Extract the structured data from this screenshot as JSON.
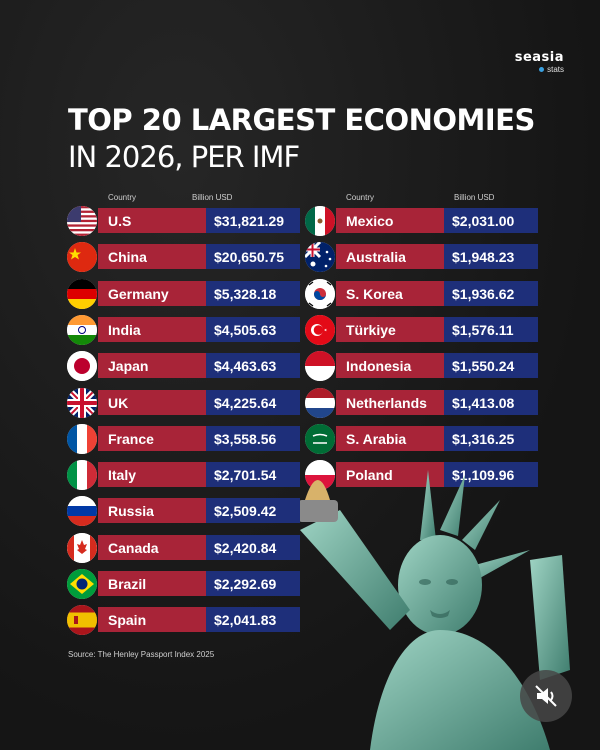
{
  "brand": {
    "name": "seasia",
    "sub": "stats"
  },
  "title": {
    "line1": "TOP 20 LARGEST ECONOMIES",
    "line2": "IN 2026, PER IMF"
  },
  "headers": {
    "country": "Country",
    "value": "Billion USD"
  },
  "source": "Source: The Henley Passport Index 2025",
  "colors": {
    "country_bg": "#a82438",
    "value_bg": "#1e2f7a",
    "background": "#1a1a1a"
  },
  "chart_data": {
    "type": "table",
    "title": "TOP 20 LARGEST ECONOMIES IN 2026, PER IMF",
    "columns": [
      "Country",
      "Billion USD"
    ],
    "rows": [
      {
        "country": "U.S",
        "value": "$31,821.29",
        "flag": "us-flag"
      },
      {
        "country": "China",
        "value": "$20,650.75",
        "flag": "china-flag"
      },
      {
        "country": "Germany",
        "value": "$5,328.18",
        "flag": "germany-flag"
      },
      {
        "country": "India",
        "value": "$4,505.63",
        "flag": "india-flag"
      },
      {
        "country": "Japan",
        "value": "$4,463.63",
        "flag": "japan-flag"
      },
      {
        "country": "UK",
        "value": "$4,225.64",
        "flag": "uk-flag"
      },
      {
        "country": "France",
        "value": "$3,558.56",
        "flag": "france-flag"
      },
      {
        "country": "Italy",
        "value": "$2,701.54",
        "flag": "italy-flag"
      },
      {
        "country": "Russia",
        "value": "$2,509.42",
        "flag": "russia-flag"
      },
      {
        "country": "Canada",
        "value": "$2,420.84",
        "flag": "canada-flag"
      },
      {
        "country": "Brazil",
        "value": "$2,292.69",
        "flag": "brazil-flag"
      },
      {
        "country": "Spain",
        "value": "$2,041.83",
        "flag": "spain-flag"
      },
      {
        "country": "Mexico",
        "value": "$2,031.00",
        "flag": "mexico-flag"
      },
      {
        "country": "Australia",
        "value": "$1,948.23",
        "flag": "australia-flag"
      },
      {
        "country": "S. Korea",
        "value": "$1,936.62",
        "flag": "south-korea-flag"
      },
      {
        "country": "Türkiye",
        "value": "$1,576.11",
        "flag": "turkiye-flag"
      },
      {
        "country": "Indonesia",
        "value": "$1,550.24",
        "flag": "indonesia-flag"
      },
      {
        "country": "Netherlands",
        "value": "$1,413.08",
        "flag": "netherlands-flag"
      },
      {
        "country": "S. Arabia",
        "value": "$1,316.25",
        "flag": "saudi-arabia-flag"
      },
      {
        "country": "Poland",
        "value": "$1,109.96",
        "flag": "poland-flag"
      }
    ]
  }
}
